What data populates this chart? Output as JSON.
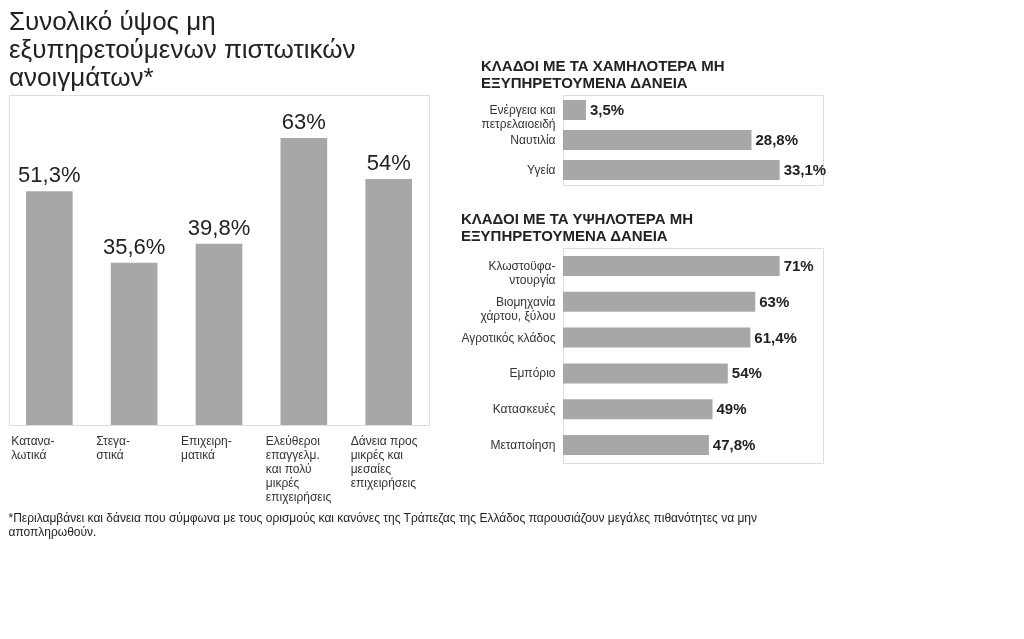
{
  "chart_data": [
    {
      "type": "bar",
      "title": "Συνολικό ύψος μη εξυπηρετούμενων πιστωτικών ανοιγμάτων*",
      "categories": [
        "Κατανα-\nλωτικά",
        "Στεγα-\nστικά",
        "Επιχειρη-\nματικά",
        "Ελεύθεροι\nεπαγγελμ.\nκαι πολύ\nμικρές\nεπιχειρήσεις",
        "Δάνεια προς\nμικρές και\nμεσαίες\nεπιχειρήσεις"
      ],
      "values": [
        51.3,
        35.6,
        39.8,
        63,
        54
      ],
      "value_labels": [
        "51,3%",
        "35,6%",
        "39,8%",
        "63%",
        "54%"
      ],
      "color": "#a7a7a7",
      "annotations": [
        "*Περιλαμβάνει και δάνεια που σύμφωνα με τους ορισμούς και κανόνες της Τράπεζας της Ελλάδος παρουσιάζουν μεγάλες πιθανότητες να μην αποπληρωθούν."
      ]
    },
    {
      "type": "bar",
      "orientation": "horizontal",
      "title": "ΚΛΑΔΟΙ ΜΕ ΤΑ ΧΑΜΗΛΟΤΕΡΑ ΜΗ ΕΞΥΠΗΡΕΤΟΥΜΕΝΑ ΔΑΝΕΙΑ",
      "categories": [
        "Ενέργεια και\nπετρελαιοειδή",
        "Ναυτιλία",
        "Υγεία"
      ],
      "values": [
        3.5,
        28.8,
        33.1
      ],
      "value_labels": [
        "3,5%",
        "28,8%",
        "33,1%"
      ],
      "color": "#a7a7a7"
    },
    {
      "type": "bar",
      "orientation": "horizontal",
      "title": "ΚΛΑΔΟΙ ΜΕ ΤΑ ΥΨΗΛΟΤΕΡΑ ΜΗ ΕΞΥΠΗΡΕΤΟΥΜΕΝΑ ΔΑΝΕΙΑ",
      "categories": [
        "Κλωστοϋφα-\nντουργία",
        "Βιομηχανία\nχάρτου, ξύλου",
        "Αγροτικός κλάδος",
        "Εμπόριο",
        "Κατασκευές",
        "Μεταποίηση"
      ],
      "values": [
        71,
        63,
        61.4,
        54,
        49,
        47.8
      ],
      "value_labels": [
        "71%",
        "63%",
        "61,4%",
        "54%",
        "49%",
        "47,8%"
      ],
      "color": "#a7a7a7"
    }
  ]
}
